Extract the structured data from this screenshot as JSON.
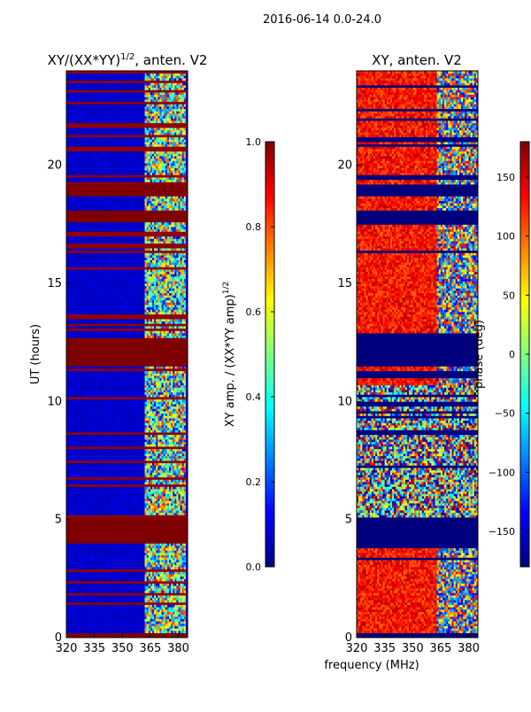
{
  "figure": {
    "suptitle": "2016-06-14 0.0-24.0",
    "shared_xlabel": "frequency (MHz)"
  },
  "colors": {
    "jet": [
      "#00007f",
      "#0000ff",
      "#007fff",
      "#00ffff",
      "#7fff7f",
      "#ffff00",
      "#ff7f00",
      "#ff0000",
      "#7f0000"
    ]
  },
  "chart_data": [
    {
      "type": "heatmap",
      "title_main": "XY/(XX*YY)",
      "title_sup": "1/2",
      "title_tail": ", anten. V2",
      "xlabel": "",
      "ylabel": "UT (hours)",
      "xlim": [
        320,
        385
      ],
      "ylim": [
        0,
        24
      ],
      "xticks": [
        320,
        335,
        350,
        365,
        380
      ],
      "yticks": [
        0,
        5,
        10,
        15,
        20
      ],
      "colorbar": {
        "label_main": "XY amp. / (XX*YY amp)",
        "label_sup": "1/2",
        "range": [
          0.0,
          1.0
        ],
        "ticks": [
          "0.0",
          "0.2",
          "0.4",
          "0.6",
          "0.8",
          "1.0"
        ]
      },
      "saturated_bands_hours": [
        [
          0.0,
          0.2
        ],
        [
          4.0,
          5.0
        ],
        [
          11.4,
          12.6
        ],
        [
          17.5,
          18.0
        ],
        [
          18.6,
          19.2
        ]
      ],
      "bright_frequency_range_MHz": [
        362,
        383
      ],
      "background_level": 0.05
    },
    {
      "type": "heatmap",
      "title": "XY, anten. V2",
      "xlabel": "frequency (MHz)",
      "ylabel": "",
      "xlim": [
        320,
        385
      ],
      "ylim": [
        0,
        24
      ],
      "xticks": [
        320,
        335,
        350,
        365,
        380
      ],
      "yticks": [
        0,
        5,
        10,
        15,
        20
      ],
      "colorbar": {
        "label": "phase (deg)",
        "range": [
          -180,
          180
        ],
        "ticks": [
          "150",
          "100",
          "50",
          "0",
          "−50",
          "−100",
          "−150"
        ]
      },
      "flagged_bands_hours": [
        [
          0.0,
          0.2
        ],
        [
          3.9,
          5.0
        ],
        [
          11.4,
          12.8
        ],
        [
          17.4,
          18.0
        ],
        [
          18.6,
          19.2
        ]
      ],
      "noisy_range_hours": [
        5.0,
        10.6
      ],
      "dominant_phase_deg": 130
    }
  ]
}
